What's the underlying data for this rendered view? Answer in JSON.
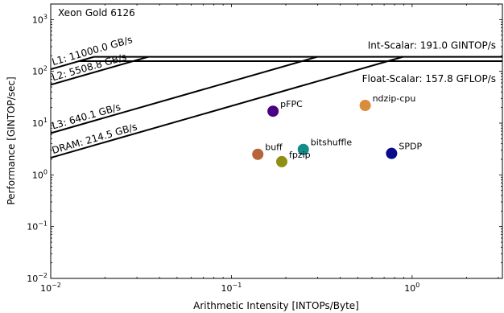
{
  "chart_data": {
    "type": "scatter",
    "title": "Xeon Gold 6126",
    "xlabel": "Arithmetic Intensity [INTOPs/Byte]",
    "ylabel": "Performance [GINTOP/sec]",
    "xscale": "log",
    "yscale": "log",
    "xlim": [
      0.01,
      3.16
    ],
    "ylim": [
      0.01,
      2000
    ],
    "x_ticks": [
      {
        "value": 0.01,
        "base": "10",
        "exp": "−2"
      },
      {
        "value": 0.1,
        "base": "10",
        "exp": "−1"
      },
      {
        "value": 1,
        "base": "10",
        "exp": "0"
      }
    ],
    "y_ticks": [
      {
        "value": 0.01,
        "base": "10",
        "exp": "−2"
      },
      {
        "value": 0.1,
        "base": "10",
        "exp": "−1"
      },
      {
        "value": 1,
        "base": "10",
        "exp": "0"
      },
      {
        "value": 10,
        "base": "10",
        "exp": "1"
      },
      {
        "value": 100,
        "base": "10",
        "exp": "2"
      },
      {
        "value": 1000,
        "base": "10",
        "exp": "3"
      }
    ],
    "ceilings": [
      {
        "label": "Int-Scalar: 191.0 GINTOP/s",
        "value": 191.0
      },
      {
        "label": "Float-Scalar: 157.8 GFLOP/s",
        "value": 157.8
      }
    ],
    "bandwidths": [
      {
        "label": "L1: 11000.0 GB/s",
        "value": 11000.0,
        "ceiling": 191.0
      },
      {
        "label": "L2: 5508.8 GB/s",
        "value": 5508.8,
        "ceiling": 191.0
      },
      {
        "label": "L3: 640.1 GB/s",
        "value": 640.1,
        "ceiling": 191.0
      },
      {
        "label": "DRAM: 214.5 GB/s",
        "value": 214.5,
        "ceiling": 191.0
      }
    ],
    "points": [
      {
        "name": "pFPC",
        "x": 0.17,
        "y": 17.0,
        "color": "#4b0082"
      },
      {
        "name": "ndzip-cpu",
        "x": 0.55,
        "y": 22.0,
        "color": "#d98c3a"
      },
      {
        "name": "bitshuffle",
        "x": 0.25,
        "y": 3.1,
        "color": "#138c8c"
      },
      {
        "name": "buff",
        "x": 0.14,
        "y": 2.5,
        "color": "#b8643a"
      },
      {
        "name": "fpzip",
        "x": 0.19,
        "y": 1.8,
        "color": "#8f8f14"
      },
      {
        "name": "SPDP",
        "x": 0.77,
        "y": 2.6,
        "color": "#0a0a8c"
      }
    ]
  }
}
